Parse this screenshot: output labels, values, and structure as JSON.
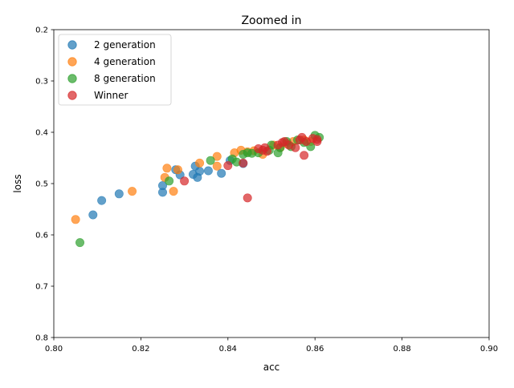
{
  "chart_data": {
    "type": "scatter",
    "title": "Zoomed in",
    "xlabel": "acc",
    "ylabel": "loss",
    "xlim": [
      0.8,
      0.9
    ],
    "ylim": [
      0.8,
      0.2
    ],
    "y_inverted": true,
    "x_ticks": [
      "0.80",
      "0.82",
      "0.84",
      "0.86",
      "0.88",
      "0.90"
    ],
    "y_ticks": [
      "0.2",
      "0.3",
      "0.4",
      "0.5",
      "0.6",
      "0.7",
      "0.8"
    ],
    "grid": false,
    "legend_position": "upper-left",
    "series": [
      {
        "name": "2 generation",
        "color": "#1f77b4",
        "points": [
          [
            0.809,
            0.561
          ],
          [
            0.811,
            0.533
          ],
          [
            0.815,
            0.52
          ],
          [
            0.825,
            0.517
          ],
          [
            0.825,
            0.504
          ],
          [
            0.828,
            0.473
          ],
          [
            0.829,
            0.483
          ],
          [
            0.832,
            0.482
          ],
          [
            0.8325,
            0.466
          ],
          [
            0.833,
            0.488
          ],
          [
            0.8335,
            0.476
          ],
          [
            0.8355,
            0.475
          ],
          [
            0.8385,
            0.48
          ],
          [
            0.8405,
            0.455
          ],
          [
            0.8435,
            0.461
          ]
        ]
      },
      {
        "name": "4 generation",
        "color": "#ff7f0e",
        "points": [
          [
            0.805,
            0.57
          ],
          [
            0.818,
            0.515
          ],
          [
            0.8255,
            0.488
          ],
          [
            0.826,
            0.47
          ],
          [
            0.8275,
            0.515
          ],
          [
            0.8285,
            0.473
          ],
          [
            0.8335,
            0.46
          ],
          [
            0.8375,
            0.447
          ],
          [
            0.8375,
            0.466
          ],
          [
            0.8415,
            0.44
          ],
          [
            0.843,
            0.435
          ],
          [
            0.8445,
            0.438
          ],
          [
            0.846,
            0.436
          ],
          [
            0.848,
            0.443
          ],
          [
            0.8505,
            0.425
          ],
          [
            0.852,
            0.43
          ],
          [
            0.8535,
            0.422
          ],
          [
            0.855,
            0.418
          ],
          [
            0.8575,
            0.415
          ],
          [
            0.859,
            0.418
          ]
        ]
      },
      {
        "name": "8 generation",
        "color": "#2ca02c",
        "points": [
          [
            0.806,
            0.615
          ],
          [
            0.8265,
            0.495
          ],
          [
            0.836,
            0.455
          ],
          [
            0.841,
            0.452
          ],
          [
            0.842,
            0.458
          ],
          [
            0.8435,
            0.443
          ],
          [
            0.8445,
            0.44
          ],
          [
            0.8455,
            0.441
          ],
          [
            0.847,
            0.44
          ],
          [
            0.8495,
            0.435
          ],
          [
            0.85,
            0.425
          ],
          [
            0.8515,
            0.44
          ],
          [
            0.852,
            0.43
          ],
          [
            0.8535,
            0.418
          ],
          [
            0.8545,
            0.428
          ],
          [
            0.856,
            0.415
          ],
          [
            0.8575,
            0.42
          ],
          [
            0.859,
            0.428
          ],
          [
            0.86,
            0.406
          ],
          [
            0.861,
            0.41
          ]
        ]
      },
      {
        "name": "Winner",
        "color": "#d62728",
        "points": [
          [
            0.83,
            0.495
          ],
          [
            0.84,
            0.465
          ],
          [
            0.8435,
            0.46
          ],
          [
            0.8445,
            0.528
          ],
          [
            0.847,
            0.432
          ],
          [
            0.848,
            0.435
          ],
          [
            0.8485,
            0.43
          ],
          [
            0.849,
            0.437
          ],
          [
            0.8515,
            0.425
          ],
          [
            0.8525,
            0.42
          ],
          [
            0.853,
            0.418
          ],
          [
            0.854,
            0.425
          ],
          [
            0.8555,
            0.43
          ],
          [
            0.8565,
            0.415
          ],
          [
            0.857,
            0.41
          ],
          [
            0.8575,
            0.445
          ],
          [
            0.858,
            0.418
          ],
          [
            0.8595,
            0.412
          ],
          [
            0.8605,
            0.414
          ],
          [
            0.8605,
            0.418
          ]
        ]
      }
    ]
  }
}
